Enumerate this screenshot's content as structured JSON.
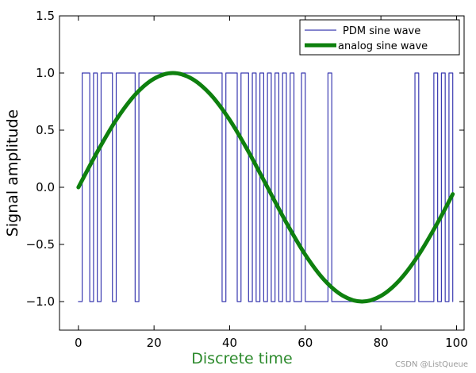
{
  "chart_data": {
    "type": "line",
    "xlabel": "Discrete time",
    "ylabel": "Signal amplitude",
    "xlim": [
      -5,
      102
    ],
    "ylim": [
      -1.25,
      1.5
    ],
    "xticks": [
      0,
      20,
      40,
      60,
      80,
      100
    ],
    "yticks": [
      -1.0,
      -0.5,
      0.0,
      0.5,
      1.0,
      1.5
    ],
    "xtick_labels": [
      "0",
      "20",
      "40",
      "60",
      "80",
      "100"
    ],
    "ytick_labels": [
      "−1.0",
      "−0.5",
      "0.0",
      "0.5",
      "1.0",
      "1.5"
    ],
    "grid": false,
    "legend_position": "top-right",
    "series": [
      {
        "name": "PDM sine wave",
        "style": "step",
        "color": "#3a3ab0",
        "x": [
          0,
          1,
          2,
          3,
          4,
          5,
          6,
          7,
          8,
          9,
          10,
          11,
          12,
          13,
          14,
          15,
          16,
          17,
          18,
          19,
          20,
          21,
          22,
          23,
          24,
          25,
          26,
          27,
          28,
          29,
          30,
          31,
          32,
          33,
          34,
          35,
          36,
          37,
          38,
          39,
          40,
          41,
          42,
          43,
          44,
          45,
          46,
          47,
          48,
          49,
          50,
          51,
          52,
          53,
          54,
          55,
          56,
          57,
          58,
          59,
          60,
          61,
          62,
          63,
          64,
          65,
          66,
          67,
          68,
          69,
          70,
          71,
          72,
          73,
          74,
          75,
          76,
          77,
          78,
          79,
          80,
          81,
          82,
          83,
          84,
          85,
          86,
          87,
          88,
          89,
          90,
          91,
          92,
          93,
          94,
          95,
          96,
          97,
          98,
          99
        ],
        "y": [
          -1,
          1,
          1,
          -1,
          1,
          -1,
          1,
          1,
          1,
          -1,
          1,
          1,
          1,
          1,
          1,
          -1,
          1,
          1,
          1,
          1,
          1,
          1,
          1,
          1,
          1,
          1,
          1,
          1,
          1,
          1,
          1,
          1,
          1,
          1,
          1,
          1,
          1,
          1,
          -1,
          1,
          1,
          1,
          -1,
          1,
          1,
          -1,
          1,
          -1,
          1,
          -1,
          1,
          -1,
          1,
          -1,
          1,
          -1,
          1,
          -1,
          -1,
          1,
          -1,
          -1,
          -1,
          -1,
          -1,
          -1,
          1,
          -1,
          -1,
          -1,
          -1,
          -1,
          -1,
          -1,
          -1,
          -1,
          -1,
          -1,
          -1,
          -1,
          -1,
          -1,
          -1,
          -1,
          -1,
          -1,
          -1,
          -1,
          -1,
          1,
          -1,
          -1,
          -1,
          -1,
          1,
          -1,
          1,
          -1,
          1,
          -1
        ]
      },
      {
        "name": "analog sine wave",
        "style": "line",
        "color": "#0e800e",
        "x": [
          0,
          5,
          10,
          15,
          20,
          25,
          30,
          35,
          40,
          45,
          50,
          55,
          60,
          65,
          70,
          75,
          80,
          85,
          90,
          95,
          99
        ],
        "y": [
          0.0,
          0.31,
          0.59,
          0.81,
          0.95,
          1.0,
          0.95,
          0.81,
          0.59,
          0.31,
          0.0,
          -0.31,
          -0.59,
          -0.81,
          -0.95,
          -1.0,
          -0.95,
          -0.81,
          -0.59,
          -0.31,
          -0.06
        ]
      }
    ]
  },
  "watermark": "CSDN @ListQueue",
  "colors": {
    "xlabel": "#2c8a2c",
    "axes": "#000000"
  }
}
